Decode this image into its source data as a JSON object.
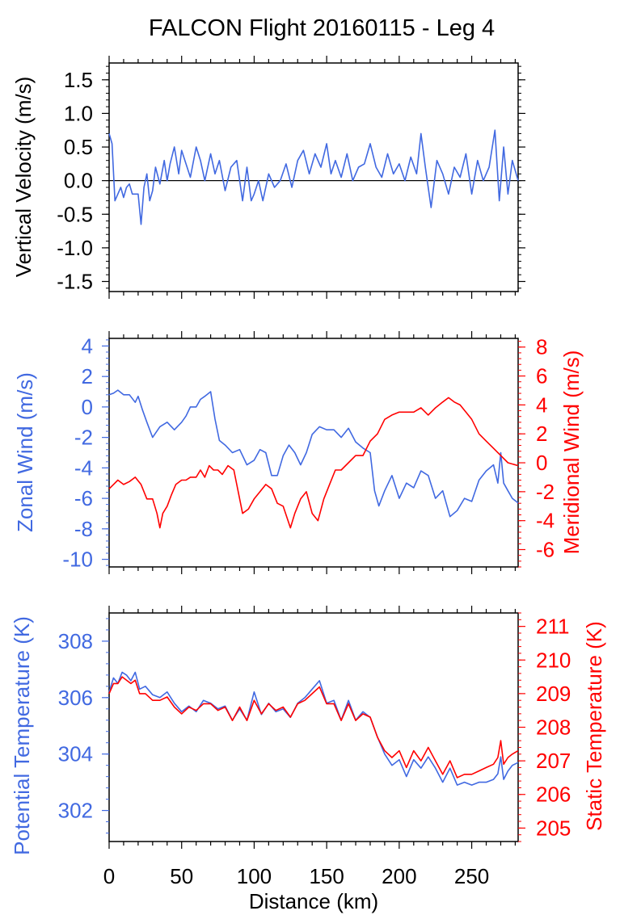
{
  "title": "FALCON Flight 20160115 - Leg 4",
  "colors": {
    "blue": "#4169e1",
    "red": "#ff0000",
    "black": "#000000"
  },
  "x_axis": {
    "label": "Distance (km)",
    "range": [
      0,
      282
    ],
    "ticks": [
      0,
      50,
      100,
      150,
      200,
      250
    ],
    "tick_labels": [
      "0",
      "50",
      "100",
      "150",
      "200",
      "250"
    ]
  },
  "chart_data": [
    {
      "type": "line",
      "name": "vertical-velocity",
      "xlabel": "Distance (km)",
      "ylabel": "Vertical Velocity (m/s)",
      "ylim": [
        -1.65,
        1.75
      ],
      "yticks": [
        -1.5,
        -1.0,
        -0.5,
        0.0,
        0.5,
        1.0,
        1.5
      ],
      "ytick_labels": [
        "-1.5",
        "-1.0",
        "-0.5",
        "0.0",
        "0.5",
        "1.0",
        "1.5"
      ],
      "zero_line": true,
      "series": [
        {
          "color": "#4169e1",
          "x": [
            0,
            2,
            4,
            6,
            8,
            10,
            12,
            14,
            16,
            18,
            20,
            22,
            24,
            26,
            28,
            30,
            32,
            35,
            38,
            40,
            42,
            45,
            48,
            50,
            53,
            56,
            60,
            63,
            66,
            70,
            73,
            76,
            80,
            84,
            88,
            92,
            95,
            98,
            100,
            103,
            106,
            110,
            114,
            118,
            122,
            126,
            130,
            134,
            138,
            142,
            146,
            150,
            153,
            156,
            160,
            164,
            168,
            172,
            176,
            180,
            184,
            188,
            192,
            196,
            200,
            204,
            208,
            212,
            215,
            218,
            222,
            226,
            230,
            234,
            238,
            242,
            246,
            250,
            254,
            258,
            262,
            266,
            269,
            272,
            275,
            278,
            282
          ],
          "y": [
            0.7,
            0.55,
            -0.3,
            -0.2,
            -0.1,
            -0.25,
            -0.1,
            -0.05,
            -0.2,
            -0.2,
            -0.2,
            -0.65,
            -0.1,
            0.1,
            -0.3,
            -0.15,
            0.2,
            -0.05,
            0.3,
            0.0,
            0.25,
            0.5,
            0.1,
            0.45,
            0.25,
            0.05,
            0.5,
            0.3,
            0.0,
            0.4,
            0.1,
            0.3,
            -0.15,
            0.2,
            0.3,
            -0.3,
            0.2,
            -0.3,
            -0.2,
            0.0,
            -0.3,
            0.1,
            -0.1,
            0.0,
            0.25,
            -0.1,
            0.3,
            0.45,
            0.1,
            0.4,
            0.2,
            0.55,
            0.1,
            0.3,
            0.05,
            0.4,
            0.0,
            0.2,
            0.25,
            0.55,
            0.2,
            0.05,
            0.4,
            0.1,
            0.25,
            0.0,
            0.35,
            0.1,
            0.7,
            0.2,
            -0.4,
            0.3,
            0.1,
            -0.2,
            0.2,
            0.05,
            0.4,
            -0.2,
            0.3,
            0.0,
            0.2,
            0.75,
            -0.3,
            0.5,
            -0.2,
            0.3,
            0.0
          ]
        }
      ]
    },
    {
      "type": "line",
      "name": "winds",
      "xlabel": "Distance (km)",
      "ylabel": "Zonal Wind (m/s)",
      "ylabel_right": "Meridional Wind (m/s)",
      "ylim": [
        -10.5,
        4.5
      ],
      "yticks": [
        -10,
        -8,
        -6,
        -4,
        -2,
        0,
        2,
        4
      ],
      "ytick_labels": [
        "-10",
        "-8",
        "-6",
        "-4",
        "-2",
        "0",
        "2",
        "4"
      ],
      "ylim_right": [
        -7.2,
        8.6
      ],
      "yticks_right": [
        -6,
        -4,
        -2,
        0,
        2,
        4,
        6,
        8
      ],
      "ytick_labels_right": [
        "-6",
        "-4",
        "-2",
        "0",
        "2",
        "4",
        "6",
        "8"
      ],
      "series": [
        {
          "axis": "left",
          "color": "#4169e1",
          "x": [
            0,
            3,
            6,
            10,
            14,
            18,
            20,
            23,
            26,
            30,
            35,
            40,
            45,
            50,
            53,
            56,
            60,
            63,
            66,
            70,
            73,
            76,
            80,
            85,
            90,
            95,
            100,
            104,
            108,
            112,
            116,
            120,
            124,
            128,
            132,
            136,
            140,
            145,
            150,
            155,
            160,
            165,
            170,
            175,
            180,
            183,
            186,
            190,
            195,
            200,
            205,
            210,
            215,
            220,
            225,
            230,
            235,
            240,
            245,
            250,
            255,
            260,
            265,
            268,
            270,
            272,
            275,
            278,
            282
          ],
          "y": [
            0.8,
            0.9,
            1.1,
            0.8,
            0.8,
            0.3,
            0.7,
            -0.2,
            -1.0,
            -2.0,
            -1.3,
            -1.0,
            -1.5,
            -1.0,
            -0.6,
            0.0,
            0.0,
            0.5,
            0.7,
            1.0,
            -0.8,
            -2.2,
            -2.5,
            -3.0,
            -2.8,
            -3.8,
            -3.5,
            -2.8,
            -3.0,
            -4.5,
            -4.5,
            -3.2,
            -2.5,
            -3.0,
            -3.8,
            -3.0,
            -1.8,
            -1.3,
            -1.5,
            -1.5,
            -2.0,
            -1.4,
            -2.3,
            -2.7,
            -3.0,
            -5.5,
            -6.5,
            -5.5,
            -4.5,
            -6.0,
            -5.0,
            -5.3,
            -4.2,
            -4.5,
            -6.0,
            -5.5,
            -7.2,
            -6.8,
            -6.0,
            -6.2,
            -4.8,
            -4.2,
            -3.8,
            -5.0,
            -3.0,
            -5.0,
            -5.5,
            -6.0,
            -6.3
          ]
        },
        {
          "axis": "right",
          "color": "#ff0000",
          "x": [
            0,
            3,
            6,
            10,
            14,
            18,
            22,
            26,
            30,
            33,
            35,
            37,
            40,
            43,
            46,
            50,
            53,
            56,
            60,
            63,
            66,
            69,
            72,
            75,
            78,
            82,
            86,
            88,
            92,
            96,
            100,
            104,
            108,
            112,
            116,
            120,
            125,
            128,
            132,
            136,
            140,
            144,
            148,
            152,
            156,
            160,
            165,
            170,
            175,
            180,
            185,
            190,
            195,
            200,
            205,
            210,
            215,
            220,
            225,
            230,
            234,
            238,
            242,
            246,
            250,
            255,
            260,
            265,
            270,
            275,
            282
          ],
          "y": [
            -1.8,
            -1.5,
            -1.2,
            -1.5,
            -1.3,
            -1.0,
            -1.5,
            -2.5,
            -2.5,
            -3.5,
            -4.5,
            -3.5,
            -3.0,
            -2.2,
            -1.5,
            -1.2,
            -1.2,
            -1.0,
            -1.0,
            -0.5,
            -1.0,
            -0.2,
            -0.5,
            -0.5,
            -0.8,
            -0.2,
            -0.5,
            -1.5,
            -3.5,
            -3.2,
            -2.5,
            -2.0,
            -1.5,
            -1.8,
            -2.8,
            -3.0,
            -4.5,
            -3.5,
            -2.5,
            -2.0,
            -3.5,
            -4.0,
            -2.5,
            -1.5,
            -0.5,
            -0.5,
            0.0,
            0.5,
            0.5,
            1.5,
            2.0,
            3.0,
            3.3,
            3.5,
            3.5,
            3.5,
            3.8,
            3.3,
            3.8,
            4.2,
            4.5,
            4.2,
            4.0,
            3.5,
            3.0,
            2.0,
            1.5,
            1.0,
            0.5,
            0.0,
            -0.2
          ]
        }
      ]
    },
    {
      "type": "line",
      "name": "temperatures",
      "xlabel": "Distance (km)",
      "ylabel": "Potential Temperature (K)",
      "ylabel_right": "Static Temperature (K)",
      "ylim": [
        300.9,
        309.0
      ],
      "yticks": [
        302,
        304,
        306,
        308
      ],
      "ytick_labels": [
        "302",
        "304",
        "306",
        "308"
      ],
      "ylim_right": [
        204.6,
        211.4
      ],
      "yticks_right": [
        205,
        206,
        207,
        208,
        209,
        210,
        211
      ],
      "ytick_labels_right": [
        "205",
        "206",
        "207",
        "208",
        "209",
        "210",
        "211"
      ],
      "series": [
        {
          "axis": "left",
          "color": "#4169e1",
          "x": [
            0,
            3,
            6,
            9,
            12,
            15,
            18,
            21,
            25,
            30,
            35,
            40,
            45,
            50,
            55,
            60,
            65,
            70,
            75,
            80,
            85,
            90,
            95,
            100,
            105,
            110,
            115,
            120,
            125,
            130,
            135,
            140,
            145,
            150,
            155,
            160,
            165,
            170,
            175,
            180,
            185,
            190,
            195,
            200,
            205,
            210,
            215,
            220,
            225,
            230,
            235,
            240,
            245,
            250,
            255,
            260,
            265,
            268,
            270,
            272,
            275,
            278,
            282
          ],
          "y": [
            306.2,
            306.7,
            306.5,
            306.9,
            306.8,
            306.6,
            306.9,
            306.3,
            306.4,
            306.1,
            306.0,
            306.2,
            305.8,
            305.5,
            305.7,
            305.5,
            305.9,
            305.8,
            305.6,
            305.7,
            305.2,
            305.6,
            305.2,
            306.2,
            305.4,
            305.8,
            305.5,
            305.6,
            305.3,
            305.8,
            306.0,
            306.3,
            306.6,
            305.8,
            305.9,
            305.2,
            305.9,
            305.2,
            305.5,
            305.3,
            304.6,
            304.0,
            303.6,
            303.8,
            303.2,
            303.8,
            303.5,
            303.9,
            303.5,
            303.0,
            303.5,
            302.9,
            303.0,
            302.9,
            303.0,
            303.0,
            303.1,
            303.3,
            303.9,
            303.1,
            303.4,
            303.6,
            303.7
          ]
        },
        {
          "axis": "right",
          "color": "#ff0000",
          "x": [
            0,
            3,
            6,
            9,
            12,
            15,
            18,
            21,
            25,
            30,
            35,
            40,
            45,
            50,
            55,
            60,
            65,
            70,
            75,
            80,
            85,
            90,
            95,
            100,
            105,
            110,
            115,
            120,
            125,
            130,
            135,
            140,
            145,
            150,
            155,
            160,
            165,
            170,
            175,
            180,
            185,
            190,
            195,
            200,
            205,
            210,
            215,
            220,
            225,
            230,
            235,
            240,
            245,
            250,
            255,
            260,
            265,
            268,
            270,
            272,
            275,
            278,
            282
          ],
          "y": [
            209.0,
            209.3,
            209.3,
            209.5,
            209.4,
            209.3,
            209.4,
            209.0,
            209.0,
            208.8,
            208.8,
            208.9,
            208.6,
            208.4,
            208.6,
            208.5,
            208.7,
            208.7,
            208.5,
            208.6,
            208.2,
            208.6,
            208.2,
            208.8,
            208.4,
            208.7,
            208.5,
            208.6,
            208.3,
            208.7,
            208.8,
            209.0,
            209.2,
            208.7,
            208.7,
            208.2,
            208.7,
            208.2,
            208.4,
            208.3,
            207.7,
            207.3,
            207.1,
            207.3,
            206.8,
            207.3,
            207.0,
            207.4,
            207.0,
            206.6,
            207.0,
            206.5,
            206.6,
            206.6,
            206.7,
            206.8,
            206.9,
            207.1,
            207.6,
            206.9,
            207.1,
            207.2,
            207.3
          ]
        }
      ]
    }
  ]
}
